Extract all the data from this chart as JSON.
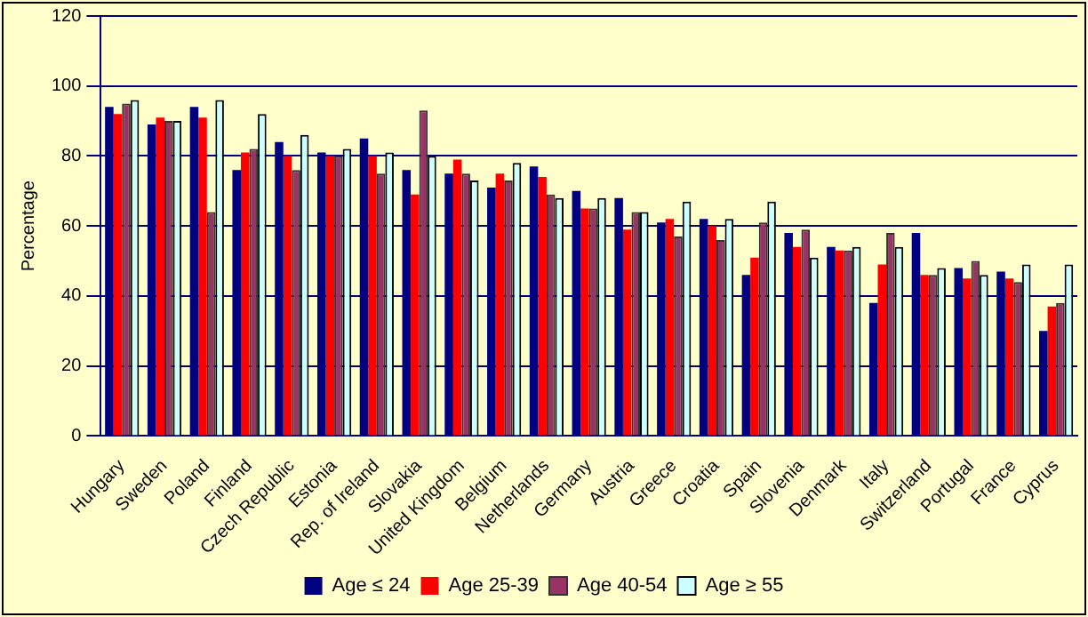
{
  "chart_data": {
    "type": "bar",
    "ylabel": "Percentage",
    "categories": [
      "Hungary",
      "Sweden",
      "Poland",
      "Finland",
      "Czech Republic",
      "Estonia",
      "Rep. of Ireland",
      "Slovakia",
      "United Kingdom",
      "Belgium",
      "Netherlands",
      "Germany",
      "Austria",
      "Greece",
      "Croatia",
      "Spain",
      "Slovenia",
      "Denmark",
      "Italy",
      "Switzerland",
      "Portugal",
      "France",
      "Cyprus"
    ],
    "series": [
      {
        "name": "Age ≤ 24",
        "color": "#000080",
        "values": [
          94,
          89,
          94,
          76,
          84,
          81,
          85,
          76,
          75,
          71,
          77,
          70,
          68,
          61,
          62,
          46,
          58,
          54,
          38,
          58,
          48,
          47,
          30
        ]
      },
      {
        "name": "Age 25-39",
        "color": "#ff0000",
        "values": [
          92,
          91,
          91,
          81,
          80,
          80,
          80,
          69,
          79,
          75,
          74,
          65,
          59,
          62,
          60,
          51,
          54,
          53,
          49,
          46,
          45,
          45,
          37
        ]
      },
      {
        "name": "Age 40-54",
        "color": "#993366",
        "values": [
          95,
          90,
          64,
          82,
          76,
          80,
          75,
          93,
          75,
          73,
          69,
          65,
          64,
          57,
          56,
          61,
          59,
          53,
          58,
          46,
          50,
          44,
          38
        ]
      },
      {
        "name": "Age ≥ 55",
        "color": "#ccffff",
        "values": [
          96,
          90,
          96,
          92,
          86,
          82,
          81,
          80,
          73,
          78,
          68,
          68,
          64,
          67,
          62,
          67,
          51,
          54,
          54,
          48,
          46,
          49,
          49
        ]
      }
    ],
    "ylim": [
      0,
      120
    ],
    "yticks": [
      0,
      20,
      40,
      60,
      80,
      100,
      120
    ],
    "grid": "y",
    "legend": "bottom"
  }
}
